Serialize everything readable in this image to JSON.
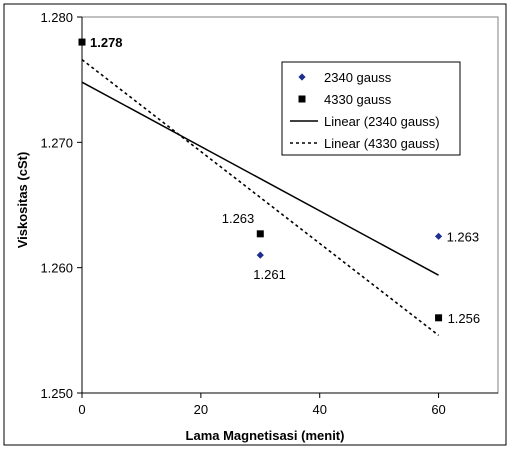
{
  "chart_data": {
    "type": "scatter",
    "xlabel": "Lama Magnetisasi (menit)",
    "ylabel": "Viskositas (cSt)",
    "xlim": [
      0,
      70
    ],
    "ylim": [
      1.25,
      1.28
    ],
    "x_ticks": [
      "0",
      "20",
      "40",
      "60"
    ],
    "y_ticks": [
      "1.250",
      "1.260",
      "1.270",
      "1.280"
    ],
    "grid": false,
    "legend_position": "top-right",
    "series": [
      {
        "name": "2340 gauss",
        "marker": "diamond",
        "color": "#1f2f8f",
        "x": [
          30,
          60
        ],
        "y": [
          1.261,
          1.2625
        ],
        "labels": [
          "1.261",
          "1.263"
        ]
      },
      {
        "name": "4330 gauss",
        "marker": "square",
        "color": "#000000",
        "x": [
          0,
          30,
          60
        ],
        "y": [
          1.278,
          1.2627,
          1.256
        ],
        "labels": [
          "1.278",
          "1.263",
          "1.256"
        ]
      }
    ],
    "trendlines": [
      {
        "name": "Linear (2340 gauss)",
        "style": "solid",
        "x": [
          0,
          60
        ],
        "y": [
          1.2748,
          1.2594
        ]
      },
      {
        "name": "Linear (4330 gauss)",
        "style": "dashed",
        "x": [
          0,
          60
        ],
        "y": [
          1.2766,
          1.2546
        ]
      }
    ]
  }
}
